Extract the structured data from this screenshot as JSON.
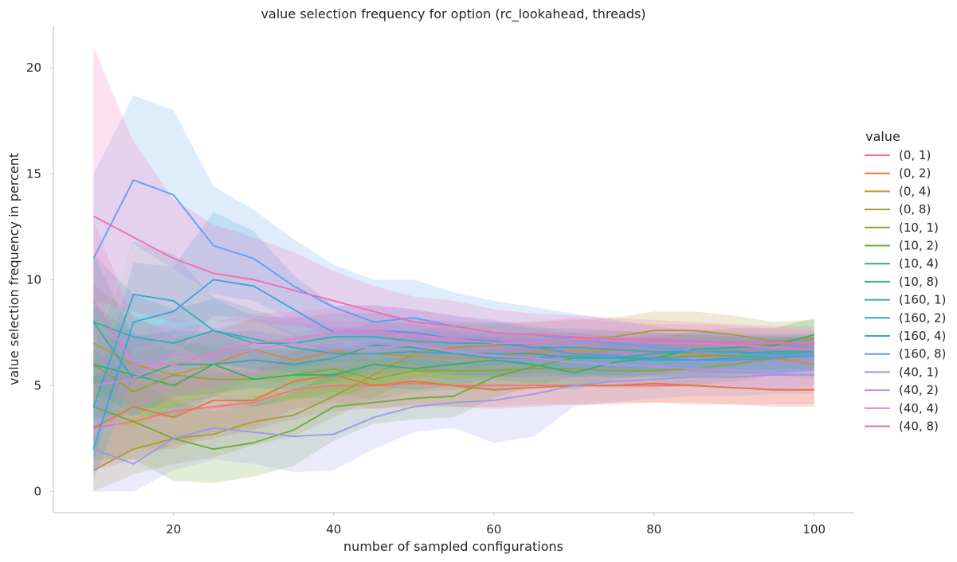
{
  "chart_data": {
    "type": "line",
    "title": "value selection frequency for option (rc_lookahead, threads)",
    "xlabel": "number of sampled configurations",
    "ylabel": "value selection frequency in percent",
    "xlim": [
      5,
      105
    ],
    "ylim": [
      -1,
      22
    ],
    "x_ticks": [
      20,
      40,
      60,
      80,
      100
    ],
    "y_ticks": [
      0,
      5,
      10,
      15,
      20
    ],
    "grid": false,
    "legend_title": "value",
    "legend_position": "right",
    "x": [
      10,
      15,
      20,
      25,
      30,
      35,
      40,
      45,
      50,
      55,
      60,
      65,
      70,
      75,
      80,
      85,
      90,
      95,
      100
    ],
    "series": [
      {
        "name": "(0, 1)",
        "color": "#f77189",
        "values": [
          3,
          3.3,
          3.8,
          4.0,
          4.2,
          4.8,
          5.0,
          5.0,
          5.1,
          5.0,
          5.0,
          5.0,
          5.0,
          5.0,
          5.0,
          5.0,
          4.9,
          4.8,
          4.8
        ],
        "lower": [
          1,
          1.5,
          2.2,
          2.5,
          2.9,
          3.4,
          3.8,
          3.9,
          4.0,
          4.0,
          4.0,
          4.1,
          4.1,
          4.2,
          4.2,
          4.2,
          4.1,
          4.1,
          4.1
        ],
        "upper": [
          5.5,
          5.5,
          5.6,
          5.6,
          5.6,
          6.2,
          6.3,
          6.2,
          6.2,
          6.1,
          6.0,
          6.0,
          5.9,
          5.9,
          5.8,
          5.8,
          5.7,
          5.6,
          5.6
        ]
      },
      {
        "name": "(0, 2)",
        "color": "#e8743c",
        "values": [
          3,
          4.0,
          3.5,
          4.3,
          4.3,
          5.2,
          5.5,
          5.0,
          5.2,
          5.0,
          4.8,
          4.9,
          5.0,
          5.0,
          5.1,
          5.0,
          4.9,
          4.8,
          4.8
        ],
        "lower": [
          1,
          2.0,
          2.0,
          2.8,
          3.0,
          3.9,
          4.2,
          3.9,
          4.1,
          4.0,
          3.9,
          4.0,
          4.1,
          4.1,
          4.2,
          4.1,
          4.1,
          4.0,
          4.0
        ],
        "upper": [
          5.5,
          6.2,
          5.2,
          5.9,
          5.7,
          6.6,
          6.9,
          6.2,
          6.4,
          6.1,
          5.8,
          5.9,
          5.9,
          5.9,
          6.0,
          5.9,
          5.7,
          5.6,
          5.6
        ]
      },
      {
        "name": "(0, 4)",
        "color": "#c39532",
        "values": [
          7,
          6.0,
          5.5,
          6.0,
          6.7,
          6.2,
          6.6,
          6.5,
          6.4,
          6.3,
          6.3,
          6.6,
          6.6,
          6.7,
          6.6,
          6.5,
          6.4,
          6.3,
          6.0
        ],
        "lower": [
          4.5,
          4.0,
          3.9,
          4.5,
          5.3,
          5.0,
          5.4,
          5.4,
          5.4,
          5.3,
          5.4,
          5.6,
          5.7,
          5.8,
          5.7,
          5.7,
          5.6,
          5.5,
          5.3
        ],
        "upper": [
          9.8,
          8.3,
          7.3,
          7.5,
          8.2,
          7.5,
          7.8,
          7.6,
          7.5,
          7.3,
          7.3,
          7.5,
          7.5,
          7.6,
          7.5,
          7.4,
          7.3,
          7.1,
          6.8
        ]
      },
      {
        "name": "(0, 8)",
        "color": "#a79d2f",
        "values": [
          1,
          2.0,
          2.5,
          2.7,
          3.3,
          3.6,
          4.5,
          5.5,
          6.5,
          6.8,
          6.9,
          7.0,
          7.2,
          7.3,
          7.6,
          7.6,
          7.4,
          7.1,
          7.2
        ],
        "lower": [
          0,
          0.8,
          1.3,
          1.6,
          2.2,
          2.6,
          3.5,
          4.4,
          5.4,
          5.8,
          5.9,
          6.1,
          6.3,
          6.4,
          6.7,
          6.7,
          6.6,
          6.3,
          6.4
        ],
        "upper": [
          2.5,
          3.5,
          3.9,
          4.0,
          4.5,
          4.8,
          5.6,
          6.6,
          7.6,
          7.9,
          7.9,
          8.0,
          8.1,
          8.2,
          8.5,
          8.5,
          8.3,
          8.0,
          8.1
        ]
      },
      {
        "name": "(10, 1)",
        "color": "#8ea52f",
        "values": [
          6,
          4.7,
          5.5,
          5.3,
          5.3,
          5.5,
          5.8,
          5.3,
          5.7,
          5.7,
          5.7,
          5.8,
          5.8,
          5.7,
          5.7,
          5.8,
          6.0,
          6.3,
          6.5
        ],
        "lower": [
          3.5,
          3.0,
          4.0,
          3.9,
          4.0,
          4.3,
          4.7,
          4.3,
          4.7,
          4.8,
          4.8,
          4.9,
          5.0,
          4.9,
          4.9,
          5.0,
          5.2,
          5.5,
          5.7
        ],
        "upper": [
          8.8,
          6.5,
          7.1,
          6.8,
          6.7,
          6.8,
          7.0,
          6.4,
          6.8,
          6.7,
          6.7,
          6.8,
          6.7,
          6.6,
          6.6,
          6.7,
          6.8,
          7.1,
          7.3
        ]
      },
      {
        "name": "(10, 2)",
        "color": "#6aac35",
        "values": [
          4,
          3.3,
          2.5,
          2.0,
          2.3,
          2.9,
          4.0,
          4.2,
          4.4,
          4.5,
          5.4,
          5.9,
          6.3,
          6.3,
          6.3,
          6.4,
          6.4,
          6.4,
          6.5
        ],
        "lower": [
          1.5,
          1.5,
          0.5,
          0.4,
          0.7,
          1.2,
          2.4,
          3.2,
          3.4,
          3.5,
          4.4,
          5.0,
          5.4,
          5.4,
          5.5,
          5.6,
          5.6,
          5.6,
          5.7
        ],
        "upper": [
          6.7,
          5.3,
          4.3,
          3.8,
          4.1,
          4.7,
          5.6,
          5.3,
          5.5,
          5.6,
          6.4,
          6.9,
          7.3,
          7.2,
          7.2,
          7.3,
          7.3,
          7.3,
          7.3
        ]
      },
      {
        "name": "(10, 4)",
        "color": "#35ae6b",
        "values": [
          6,
          5.5,
          5.0,
          6.0,
          5.3,
          5.5,
          5.5,
          6.0,
          5.8,
          6.0,
          6.2,
          6.0,
          5.6,
          6.1,
          6.3,
          6.7,
          6.8,
          6.9,
          7.4
        ],
        "lower": [
          3.5,
          3.6,
          3.5,
          4.5,
          4.0,
          4.4,
          4.4,
          5.0,
          4.8,
          5.0,
          5.3,
          5.1,
          4.8,
          5.3,
          5.5,
          5.9,
          6.0,
          6.1,
          6.6
        ],
        "upper": [
          8.8,
          7.5,
          6.6,
          7.6,
          6.7,
          6.7,
          6.7,
          7.1,
          6.9,
          7.0,
          7.2,
          7.0,
          6.5,
          7.0,
          7.2,
          7.6,
          7.7,
          7.7,
          8.2
        ]
      },
      {
        "name": "(10, 8)",
        "color": "#36ac94",
        "values": [
          8,
          5.3,
          6.0,
          6.0,
          6.2,
          6.0,
          6.3,
          6.9,
          6.8,
          6.5,
          6.5,
          6.5,
          6.3,
          6.3,
          6.5,
          6.6,
          6.5,
          6.6,
          6.6
        ],
        "lower": [
          5.0,
          3.5,
          4.5,
          4.6,
          4.9,
          4.8,
          5.2,
          5.8,
          5.8,
          5.5,
          5.5,
          5.6,
          5.4,
          5.5,
          5.7,
          5.8,
          5.7,
          5.8,
          5.8
        ],
        "upper": [
          11.2,
          7.3,
          7.6,
          7.5,
          7.6,
          7.3,
          7.5,
          8.0,
          7.9,
          7.6,
          7.5,
          7.5,
          7.3,
          7.2,
          7.4,
          7.5,
          7.4,
          7.4,
          7.4
        ]
      },
      {
        "name": "(160, 1)",
        "color": "#38aaac",
        "values": [
          8,
          7.3,
          7.0,
          7.6,
          7.0,
          7.0,
          7.3,
          7.3,
          7.1,
          7.0,
          7.0,
          6.8,
          6.8,
          6.7,
          6.6,
          6.6,
          6.6,
          6.5,
          6.5
        ],
        "lower": [
          5.0,
          5.3,
          5.4,
          6.1,
          5.7,
          5.8,
          6.1,
          6.2,
          6.0,
          6.0,
          6.0,
          5.9,
          5.9,
          5.8,
          5.8,
          5.8,
          5.8,
          5.7,
          5.7
        ],
        "upper": [
          11.2,
          9.3,
          8.6,
          9.1,
          8.3,
          8.2,
          8.4,
          8.4,
          8.2,
          8.0,
          8.0,
          7.7,
          7.7,
          7.6,
          7.5,
          7.4,
          7.4,
          7.3,
          7.3
        ]
      },
      {
        "name": "(160, 2)",
        "color": "#39a7bf",
        "values": [
          4,
          9.3,
          9.0,
          7.6,
          7.2,
          6.8,
          6.5,
          6.5,
          6.6,
          6.5,
          6.3,
          6.3,
          6.4,
          6.3,
          6.2,
          6.2,
          6.3,
          6.4,
          6.5
        ],
        "lower": [
          1.5,
          6.8,
          7.0,
          6.0,
          5.8,
          5.6,
          5.4,
          5.5,
          5.6,
          5.5,
          5.4,
          5.4,
          5.5,
          5.4,
          5.4,
          5.4,
          5.5,
          5.6,
          5.7
        ],
        "upper": [
          6.7,
          11.8,
          11.2,
          9.2,
          8.6,
          8.0,
          7.7,
          7.6,
          7.6,
          7.5,
          7.3,
          7.2,
          7.3,
          7.2,
          7.1,
          7.0,
          7.1,
          7.2,
          7.3
        ]
      },
      {
        "name": "(160, 4)",
        "color": "#3ba3d8",
        "values": [
          2,
          8.0,
          8.5,
          10.0,
          9.7,
          8.6,
          7.5,
          7.6,
          7.5,
          7.2,
          7.1,
          6.8,
          6.5,
          6.4,
          6.3,
          6.2,
          6.2,
          6.3,
          6.4
        ],
        "lower": [
          0.5,
          5.5,
          6.5,
          8.3,
          8.2,
          7.3,
          6.3,
          6.5,
          6.4,
          6.2,
          6.1,
          5.9,
          5.6,
          5.5,
          5.4,
          5.4,
          5.4,
          5.5,
          5.6
        ],
        "upper": [
          4.0,
          10.8,
          10.6,
          13.2,
          12.3,
          10.2,
          8.8,
          8.8,
          8.6,
          8.3,
          8.1,
          7.8,
          7.5,
          7.3,
          7.2,
          7.1,
          7.1,
          7.2,
          7.3
        ]
      },
      {
        "name": "(160, 8)",
        "color": "#5e9ef0",
        "values": [
          11,
          14.7,
          14.0,
          11.6,
          11.0,
          9.7,
          8.7,
          8.0,
          8.2,
          7.8,
          7.5,
          7.4,
          7.2,
          7.0,
          6.8,
          6.6,
          6.5,
          6.4,
          6.5
        ],
        "lower": [
          7.0,
          11.7,
          10.5,
          9.3,
          9.0,
          8.0,
          7.3,
          6.8,
          7.0,
          6.7,
          6.4,
          6.4,
          6.2,
          6.0,
          5.9,
          5.7,
          5.6,
          5.5,
          5.6
        ],
        "upper": [
          15.0,
          18.7,
          18.0,
          14.4,
          13.3,
          11.9,
          10.7,
          10.0,
          10.0,
          9.4,
          9.0,
          8.7,
          8.4,
          8.1,
          7.8,
          7.6,
          7.5,
          7.4,
          7.5
        ]
      },
      {
        "name": "(40, 1)",
        "color": "#9b96ef",
        "values": [
          2,
          1.3,
          2.5,
          3.0,
          2.8,
          2.6,
          2.7,
          3.5,
          4.0,
          4.2,
          4.3,
          4.6,
          5.0,
          5.2,
          5.3,
          5.4,
          5.4,
          5.5,
          5.5
        ],
        "lower": [
          0,
          0,
          1.0,
          1.5,
          1.3,
          0.9,
          1.0,
          2.0,
          2.8,
          3.0,
          2.3,
          2.6,
          4.0,
          4.2,
          4.4,
          4.5,
          4.5,
          4.6,
          4.6
        ],
        "upper": [
          4.5,
          3.0,
          4.1,
          4.6,
          4.3,
          4.3,
          4.5,
          5.0,
          5.2,
          5.4,
          5.5,
          5.7,
          6.0,
          6.2,
          6.2,
          6.3,
          6.3,
          6.4,
          6.4
        ]
      },
      {
        "name": "(40, 2)",
        "color": "#c88ae6",
        "values": [
          5,
          5.3,
          6.5,
          6.2,
          6.7,
          7.0,
          6.8,
          6.8,
          6.9,
          6.6,
          6.4,
          6.3,
          6.1,
          6.0,
          5.9,
          5.8,
          5.7,
          5.6,
          5.8
        ],
        "lower": [
          2.5,
          3.5,
          5.0,
          4.8,
          5.4,
          5.8,
          5.7,
          5.7,
          5.9,
          5.6,
          5.4,
          5.4,
          5.2,
          5.1,
          5.0,
          5.0,
          4.9,
          4.8,
          5.0
        ],
        "upper": [
          7.8,
          7.3,
          8.2,
          7.7,
          8.1,
          8.3,
          8.0,
          8.0,
          8.0,
          7.7,
          7.4,
          7.3,
          7.1,
          6.9,
          6.8,
          6.7,
          6.6,
          6.5,
          6.6
        ]
      },
      {
        "name": "(40, 4)",
        "color": "#ee78d1",
        "values": [
          9,
          6.0,
          6.0,
          6.5,
          7.0,
          7.2,
          7.5,
          7.6,
          7.4,
          7.2,
          7.0,
          7.0,
          7.2,
          7.1,
          7.0,
          7.0,
          6.9,
          6.8,
          6.7
        ],
        "lower": [
          5.5,
          4.0,
          4.4,
          5.0,
          5.6,
          5.9,
          6.3,
          6.4,
          6.3,
          6.2,
          6.0,
          6.0,
          6.3,
          6.2,
          6.1,
          6.1,
          6.0,
          6.0,
          5.9
        ],
        "upper": [
          12.8,
          8.1,
          7.7,
          8.0,
          8.4,
          8.5,
          8.7,
          8.8,
          8.6,
          8.3,
          8.0,
          8.0,
          8.2,
          8.0,
          7.9,
          7.9,
          7.8,
          7.7,
          7.6
        ]
      },
      {
        "name": "(40, 8)",
        "color": "#f569b3",
        "values": [
          13,
          12.0,
          11.0,
          10.3,
          10.0,
          9.5,
          9.0,
          8.5,
          8.0,
          7.8,
          7.5,
          7.4,
          7.3,
          7.2,
          7.2,
          7.1,
          7.0,
          7.0,
          7.0
        ],
        "lower": [
          9.0,
          8.5,
          8.0,
          8.0,
          8.0,
          7.8,
          7.6,
          7.3,
          6.9,
          6.8,
          6.5,
          6.4,
          6.4,
          6.3,
          6.3,
          6.3,
          6.2,
          6.2,
          6.2
        ],
        "upper": [
          21.0,
          16.5,
          13.8,
          12.6,
          12.0,
          11.3,
          10.4,
          9.7,
          9.2,
          9.0,
          8.6,
          8.4,
          8.3,
          8.2,
          8.1,
          8.0,
          7.9,
          7.8,
          7.8
        ]
      }
    ]
  }
}
